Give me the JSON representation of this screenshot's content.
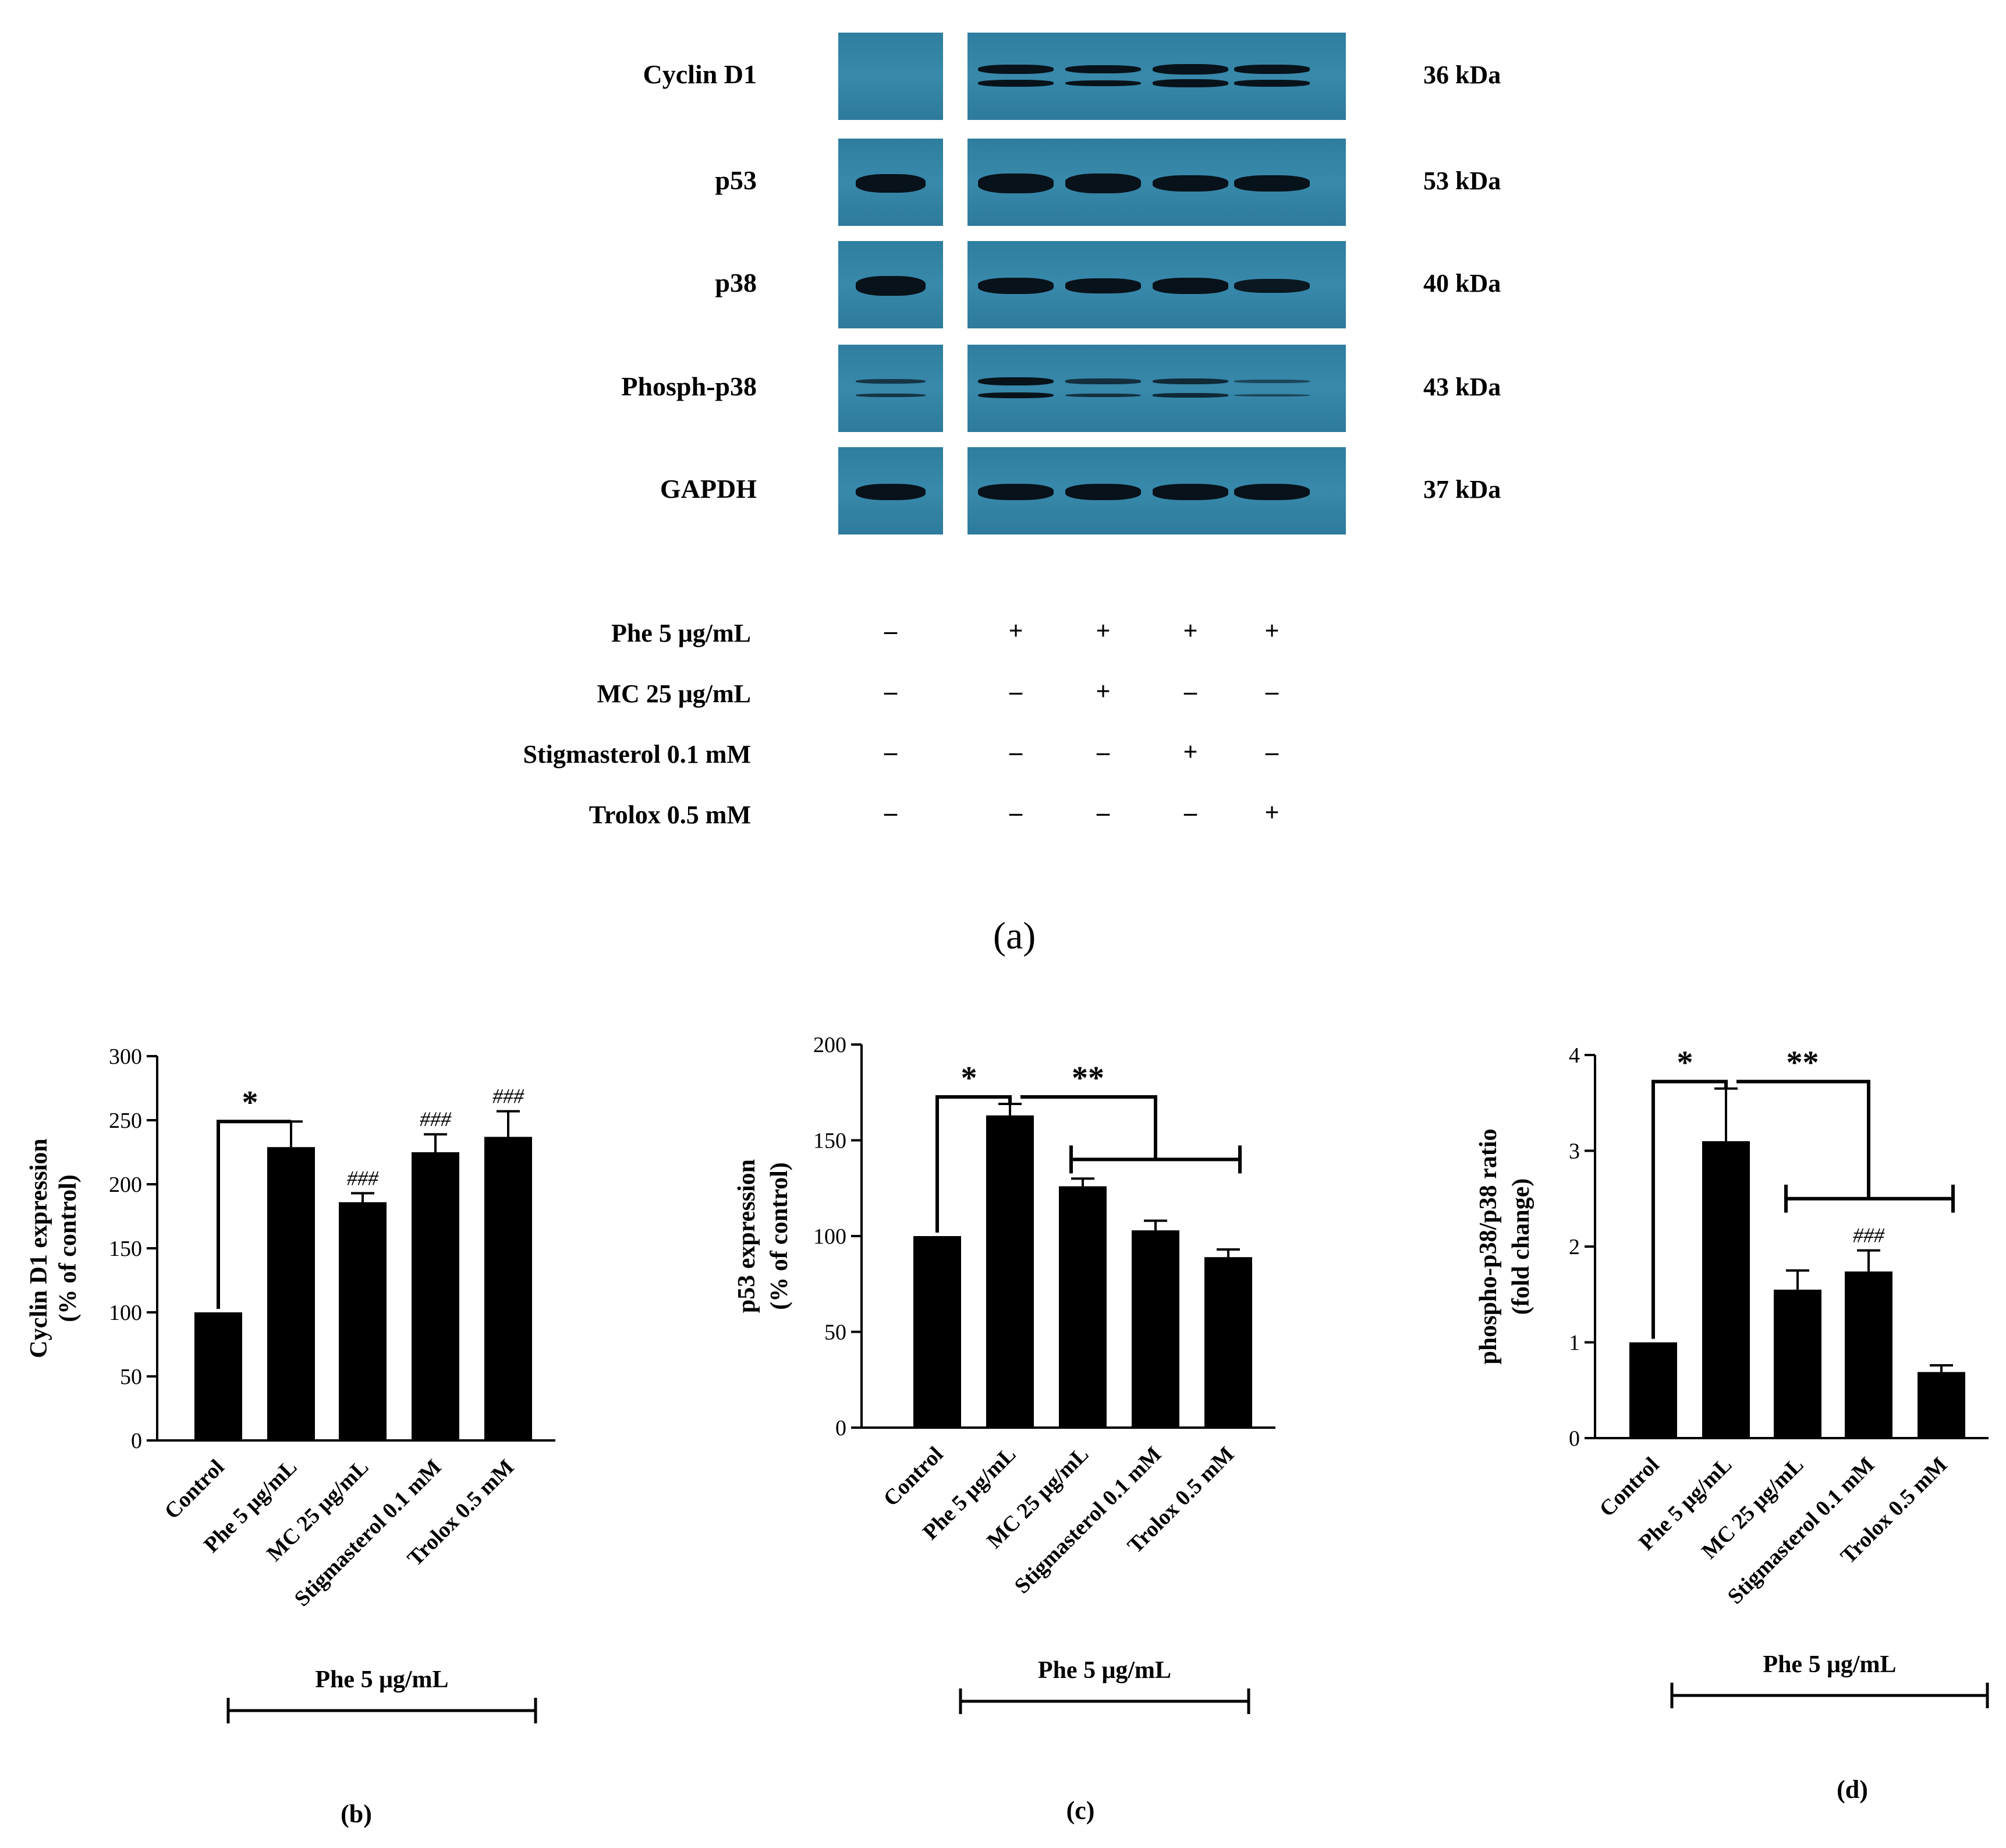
{
  "panel_a": {
    "letter": "(a)",
    "proteins": [
      {
        "name": "Cyclin D1",
        "kda": "36 kDa",
        "intensity": [
          0.05,
          0.9,
          0.8,
          1.0,
          0.85
        ],
        "double": true
      },
      {
        "name": "p53",
        "kda": "53 kDa",
        "intensity": [
          0.95,
          1.0,
          1.0,
          0.85,
          0.8
        ],
        "double": false
      },
      {
        "name": "p38",
        "kda": "40 kDa",
        "intensity": [
          1.0,
          0.85,
          0.75,
          0.8,
          0.7
        ],
        "double": false
      },
      {
        "name": "Phosph-p38",
        "kda": "43 kDa",
        "intensity": [
          0.45,
          0.8,
          0.5,
          0.55,
          0.3
        ],
        "double": true
      },
      {
        "name": "GAPDH",
        "kda": "37 kDa",
        "intensity": [
          0.85,
          0.85,
          0.85,
          0.8,
          0.85
        ],
        "double": false
      }
    ],
    "treatments": [
      {
        "label": "Phe 5 μg/mL",
        "signs": [
          "–",
          "+",
          "+",
          "+",
          "+"
        ]
      },
      {
        "label": "MC 25 μg/mL",
        "signs": [
          "–",
          "–",
          "+",
          "–",
          "–"
        ]
      },
      {
        "label": "Stigmasterol 0.1 mM",
        "signs": [
          "–",
          "–",
          "–",
          "+",
          "–"
        ]
      },
      {
        "label": "Trolox 0.5 mM",
        "signs": [
          "–",
          "–",
          "–",
          "–",
          "+"
        ]
      }
    ]
  },
  "chart_data": [
    {
      "type": "bar",
      "panel": "(b)",
      "ylabel": "Cyclin D1 expression",
      "ylabel2": "(% of control)",
      "categories": [
        "Control",
        "Phe 5 μg/mL",
        "MC 25 μg/mL",
        "Stigmasterol 0.1 mM",
        "Trolox 0.5 mM"
      ],
      "values": [
        100,
        229,
        186,
        225,
        237
      ],
      "errors": [
        0,
        20,
        7,
        14,
        20
      ],
      "ylim": [
        0,
        300
      ],
      "yticks": [
        0,
        50,
        100,
        150,
        200,
        250,
        300
      ],
      "annotations": [
        "",
        "",
        "###",
        "###",
        "###"
      ],
      "brackets": [
        {
          "label": "*",
          "from": 0,
          "to": 1
        }
      ],
      "group_label": "Phe 5 μg/mL"
    },
    {
      "type": "bar",
      "panel": "(c)",
      "ylabel": "p53 expression",
      "ylabel2": "(% of control)",
      "categories": [
        "Control",
        "Phe 5 μg/mL",
        "MC 25 μg/mL",
        "Stigmasterol 0.1 mM",
        "Trolox 0.5 mM"
      ],
      "values": [
        100,
        163,
        126,
        103,
        89
      ],
      "errors": [
        0,
        6,
        4,
        5,
        4
      ],
      "ylim": [
        0,
        200
      ],
      "yticks": [
        0,
        50,
        100,
        150,
        200
      ],
      "annotations": [
        "",
        "",
        "",
        "",
        ""
      ],
      "brackets": [
        {
          "label": "*",
          "from": 0,
          "to": 1
        },
        {
          "label": "**",
          "from": 1,
          "to": "2-4"
        }
      ],
      "group_label": "Phe 5 μg/mL"
    },
    {
      "type": "bar",
      "panel": "(d)",
      "ylabel": "phospho-p38/p38 ratio",
      "ylabel2": "(fold change)",
      "categories": [
        "Control",
        "Phe 5 μg/mL",
        "MC 25 μg/mL",
        "Stigmasterol 0.1 mM",
        "Trolox 0.5 mM"
      ],
      "values": [
        1.0,
        3.1,
        1.55,
        1.74,
        0.69
      ],
      "errors": [
        0,
        0.55,
        0.2,
        0.22,
        0.07
      ],
      "ylim": [
        0,
        4
      ],
      "yticks": [
        0,
        1,
        2,
        3,
        4
      ],
      "annotations": [
        "",
        "",
        "",
        "###",
        ""
      ],
      "brackets": [
        {
          "label": "*",
          "from": 0,
          "to": 1
        },
        {
          "label": "**",
          "from": 1,
          "to": "2-4"
        }
      ],
      "group_label": "Phe 5 μg/mL"
    }
  ]
}
